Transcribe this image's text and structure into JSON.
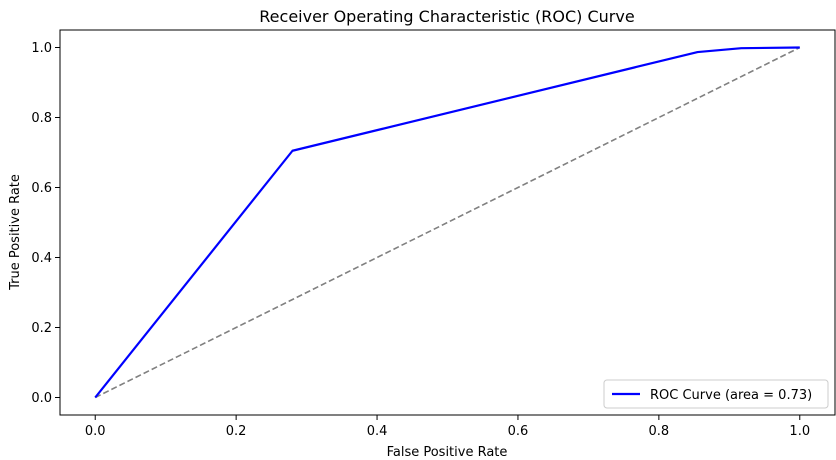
{
  "chart_data": {
    "type": "line",
    "title": "Receiver Operating Characteristic (ROC) Curve",
    "xlabel": "False Positive Rate",
    "ylabel": "True Positive Rate",
    "xlim": [
      -0.05,
      1.05
    ],
    "ylim": [
      -0.05,
      1.05
    ],
    "xticks": [
      "0.0",
      "0.2",
      "0.4",
      "0.6",
      "0.8",
      "1.0"
    ],
    "yticks": [
      "0.0",
      "0.2",
      "0.4",
      "0.6",
      "0.8",
      "1.0"
    ],
    "grid": false,
    "legend_position": "lower-right",
    "series": [
      {
        "name": "ROC Curve (area = 0.73)",
        "color": "#0000ff",
        "style": "solid",
        "x": [
          0.0,
          0.28,
          0.855,
          0.917,
          1.0
        ],
        "y": [
          0.0,
          0.705,
          0.987,
          0.998,
          1.0
        ]
      },
      {
        "color": "#808080",
        "style": "dashed",
        "x": [
          0.0,
          1.0
        ],
        "y": [
          0.0,
          1.0
        ]
      }
    ]
  }
}
